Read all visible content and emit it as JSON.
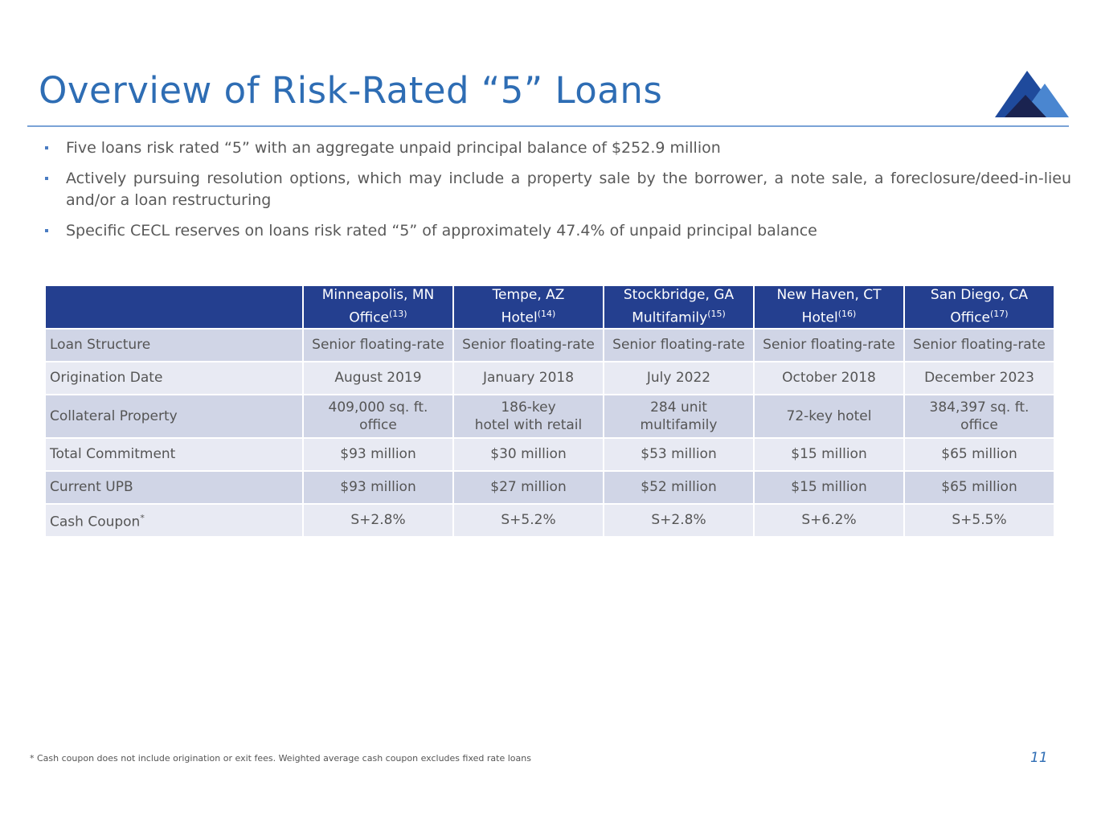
{
  "header": {
    "title": "Overview of Risk-Rated “5” Loans"
  },
  "bullets": [
    "Five loans risk rated “5” with an aggregate unpaid principal balance of $252.9 million",
    "Actively pursuing resolution options, which may include a property sale by the borrower, a note sale, a foreclosure/deed-in-lieu and/or a loan restructuring",
    "Specific CECL reserves on loans risk rated “5” of approximately 47.4% of unpaid principal balance"
  ],
  "table": {
    "columns": [
      {
        "location": "Minneapolis, MN",
        "type": "Office",
        "note": "(13)"
      },
      {
        "location": "Tempe, AZ",
        "type": "Hotel",
        "note": "(14)"
      },
      {
        "location": "Stockbridge, GA",
        "type": "Multifamily",
        "note": "(15)"
      },
      {
        "location": "New Haven, CT",
        "type": "Hotel",
        "note": "(16)"
      },
      {
        "location": "San Diego, CA",
        "type": "Office",
        "note": "(17)"
      }
    ],
    "rows": [
      {
        "label": "Loan Structure",
        "cells": [
          "Senior floating-rate",
          "Senior floating-rate",
          "Senior floating-rate",
          "Senior floating-rate",
          "Senior floating-rate"
        ]
      },
      {
        "label": "Origination Date",
        "cells": [
          "August 2019",
          "January 2018",
          "July 2022",
          "October 2018",
          "December 2023"
        ]
      },
      {
        "label": "Collateral Property",
        "cells": [
          "409,000 sq. ft.\noffice",
          "186-key\nhotel with retail",
          "284 unit\nmultifamily",
          "72-key hotel",
          "384,397 sq. ft.\noffice"
        ]
      },
      {
        "label": "Total Commitment",
        "cells": [
          "$93 million",
          "$30 million",
          "$53 million",
          "$15 million",
          "$65 million"
        ]
      },
      {
        "label": "Current UPB",
        "cells": [
          "$93 million",
          "$27 million",
          "$52 million",
          "$15 million",
          "$65 million"
        ]
      },
      {
        "label": "Cash Coupon",
        "note": "*",
        "cells": [
          "S+2.8%",
          "S+5.2%",
          "S+2.8%",
          "S+6.2%",
          "S+5.5%"
        ]
      }
    ]
  },
  "footer": {
    "footnote": "* Cash coupon does not include origination or exit fees. Weighted average cash coupon excludes fixed rate loans",
    "page_number": "11"
  }
}
